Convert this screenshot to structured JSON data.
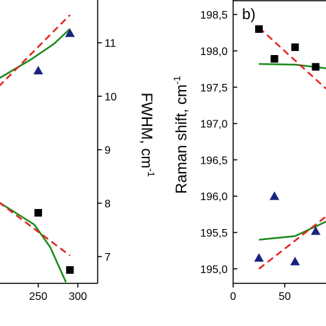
{
  "chart_data": [
    {
      "type": "scatter",
      "panel": "a",
      "x_axis": {
        "range": [
          200,
          325
        ],
        "ticks": [
          250,
          300
        ],
        "tick_labels": [
          "250",
          "300"
        ]
      },
      "y2_axis": {
        "label": "FWHM, cm",
        "label_superscript": "-1",
        "range": [
          6.5,
          11.8
        ],
        "ticks": [
          7,
          8,
          9,
          10,
          11
        ],
        "tick_labels": [
          "7",
          "8",
          "9",
          "10",
          "11"
        ]
      },
      "series": [
        {
          "marker": "triangle",
          "color": "#1a237e",
          "points": [
            {
              "x": 250,
              "y": 10.48
            },
            {
              "x": 290,
              "y": 11.18
            }
          ]
        },
        {
          "marker": "square",
          "color": "#000000",
          "points": [
            {
              "x": 250,
              "y": 7.82
            },
            {
              "x": 290,
              "y": 6.75
            }
          ]
        },
        {
          "style": "solid",
          "color": "#1a8a1a",
          "points": [
            {
              "x": 200,
              "y": 10.33
            },
            {
              "x": 240,
              "y": 10.68
            },
            {
              "x": 270,
              "y": 10.98
            },
            {
              "x": 290,
              "y": 11.26
            }
          ]
        },
        {
          "style": "dashed",
          "color": "#e52222",
          "points": [
            {
              "x": 200,
              "y": 10.18
            },
            {
              "x": 290,
              "y": 11.52
            }
          ]
        },
        {
          "style": "solid",
          "color": "#1a8a1a",
          "points": [
            {
              "x": 200,
              "y": 8.02
            },
            {
              "x": 245,
              "y": 7.6
            },
            {
              "x": 265,
              "y": 7.18
            },
            {
              "x": 285,
              "y": 6.52
            }
          ]
        },
        {
          "style": "dashed",
          "color": "#e52222",
          "points": [
            {
              "x": 200,
              "y": 8.02
            },
            {
              "x": 290,
              "y": 7.02
            }
          ]
        }
      ],
      "grid": false
    },
    {
      "type": "scatter",
      "panel": "b",
      "panel_label": "b)",
      "x_axis": {
        "range": [
          0,
          90
        ],
        "ticks": [
          0,
          50
        ],
        "tick_labels": [
          "0",
          "50"
        ]
      },
      "y_axis": {
        "label": "Raman shift, cm",
        "label_superscript": "-1",
        "range": [
          194.8,
          198.7
        ],
        "ticks": [
          195.0,
          195.5,
          196.0,
          196.5,
          197.0,
          197.5,
          198.0,
          198.5
        ],
        "tick_labels": [
          "195,0",
          "195,5",
          "196,0",
          "196,5",
          "197,0",
          "197,5",
          "198,0",
          "198,5"
        ]
      },
      "series": [
        {
          "marker": "square",
          "color": "#000000",
          "points": [
            {
              "x": 25,
              "y": 198.3
            },
            {
              "x": 40,
              "y": 197.89
            },
            {
              "x": 60,
              "y": 198.05
            },
            {
              "x": 80,
              "y": 197.78
            }
          ]
        },
        {
          "marker": "triangle",
          "color": "#1a237e",
          "points": [
            {
              "x": 25,
              "y": 195.15
            },
            {
              "x": 40,
              "y": 196.0
            },
            {
              "x": 60,
              "y": 195.1
            },
            {
              "x": 80,
              "y": 195.52
            }
          ]
        },
        {
          "style": "solid",
          "color": "#1a8a1a",
          "points": [
            {
              "x": 25,
              "y": 197.82
            },
            {
              "x": 60,
              "y": 197.81
            },
            {
              "x": 90,
              "y": 197.76
            }
          ]
        },
        {
          "style": "dashed",
          "color": "#e52222",
          "points": [
            {
              "x": 25,
              "y": 198.32
            },
            {
              "x": 90,
              "y": 197.48
            }
          ]
        },
        {
          "style": "solid",
          "color": "#1a8a1a",
          "points": [
            {
              "x": 25,
              "y": 195.4
            },
            {
              "x": 60,
              "y": 195.45
            },
            {
              "x": 90,
              "y": 195.65
            }
          ]
        },
        {
          "style": "dashed",
          "color": "#e52222",
          "points": [
            {
              "x": 25,
              "y": 195.0
            },
            {
              "x": 90,
              "y": 195.72
            }
          ]
        }
      ],
      "grid": false
    }
  ]
}
